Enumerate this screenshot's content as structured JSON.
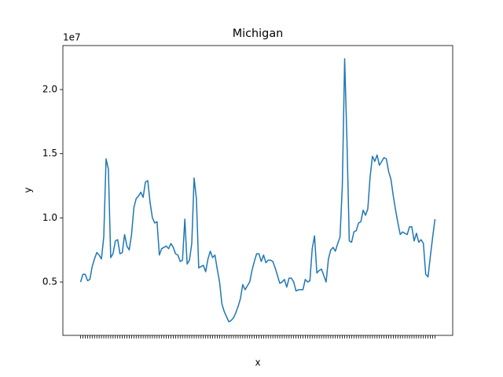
{
  "chart_data": {
    "type": "line",
    "title": "Michigan",
    "x_label": "x",
    "y_label": "y",
    "y_offset_label": "1e7",
    "categories": [
      null,
      null,
      null,
      null,
      null,
      null,
      null,
      null,
      null,
      null,
      null,
      null,
      null,
      null,
      null,
      null,
      null,
      null,
      null,
      null,
      null,
      null,
      null,
      null,
      null,
      null,
      null,
      null,
      null,
      null,
      null,
      null,
      null,
      null,
      null,
      null,
      null,
      null,
      null,
      null,
      null,
      null,
      null,
      null,
      null,
      null,
      null,
      null,
      null,
      null,
      null,
      null,
      null,
      null,
      null,
      null,
      null,
      null,
      null,
      null,
      null,
      null,
      null,
      null,
      null,
      null,
      null,
      null,
      null,
      null,
      null,
      null,
      null,
      null,
      null,
      null,
      null,
      null,
      null,
      null,
      null,
      null,
      null,
      null,
      null,
      null,
      null,
      null,
      null,
      null,
      null,
      null,
      null,
      null,
      null,
      null,
      null,
      null,
      null,
      null,
      null,
      null,
      null,
      null,
      null,
      null,
      null,
      null,
      null,
      null,
      null,
      null,
      null,
      null,
      null,
      null,
      null,
      null,
      null,
      null,
      null,
      null,
      null,
      null,
      null,
      null,
      null,
      null,
      null,
      null,
      null,
      null,
      null,
      null,
      null,
      null,
      null,
      null,
      null,
      null,
      null,
      null,
      null,
      null,
      null,
      null,
      null,
      null,
      null,
      null,
      null,
      null,
      null,
      null
    ],
    "series": [
      {
        "name": "Michigan",
        "color": "#1f77b4",
        "values": [
          0.5,
          0.56,
          0.56,
          0.51,
          0.52,
          0.62,
          0.68,
          0.73,
          0.71,
          0.68,
          0.85,
          1.46,
          1.38,
          0.69,
          0.72,
          0.82,
          0.83,
          0.72,
          0.73,
          0.87,
          0.78,
          0.75,
          0.87,
          1.08,
          1.15,
          1.17,
          1.2,
          1.16,
          1.28,
          1.29,
          1.12,
          1.0,
          0.96,
          0.97,
          0.71,
          0.76,
          0.77,
          0.78,
          0.76,
          0.8,
          0.77,
          0.72,
          0.71,
          0.66,
          0.67,
          0.99,
          0.64,
          0.67,
          0.8,
          1.31,
          1.15,
          0.61,
          0.62,
          0.63,
          0.58,
          0.68,
          0.74,
          0.69,
          0.71,
          0.6,
          0.5,
          0.33,
          0.27,
          0.23,
          0.19,
          0.2,
          0.22,
          0.26,
          0.31,
          0.37,
          0.48,
          0.44,
          0.47,
          0.5,
          0.59,
          0.66,
          0.72,
          0.72,
          0.66,
          0.71,
          0.65,
          0.67,
          0.67,
          0.66,
          0.61,
          0.55,
          0.49,
          0.5,
          0.52,
          0.46,
          0.53,
          0.53,
          0.5,
          0.43,
          0.44,
          0.44,
          0.44,
          0.52,
          0.5,
          0.51,
          0.76,
          0.86,
          0.57,
          0.59,
          0.6,
          0.55,
          0.5,
          0.68,
          0.75,
          0.77,
          0.74,
          0.8,
          0.85,
          1.25,
          2.24,
          1.6,
          0.82,
          0.81,
          0.89,
          0.9,
          0.96,
          0.97,
          1.06,
          1.02,
          1.07,
          1.32,
          1.48,
          1.44,
          1.49,
          1.41,
          1.44,
          1.47,
          1.46,
          1.36,
          1.3,
          1.17,
          1.06,
          0.96,
          0.87,
          0.89,
          0.88,
          0.87,
          0.93,
          0.93,
          0.82,
          0.88,
          0.81,
          0.83,
          0.8,
          0.56,
          0.54,
          0.7,
          0.85,
          0.99
        ]
      }
    ],
    "ylim": [
      0.084,
      2.343
    ],
    "yticks": [
      0.5,
      {
        "value": 1,
        "label": "1.0"
      },
      1.5,
      {
        "value": 2,
        "label": "2.0"
      }
    ],
    "grid": false
  }
}
